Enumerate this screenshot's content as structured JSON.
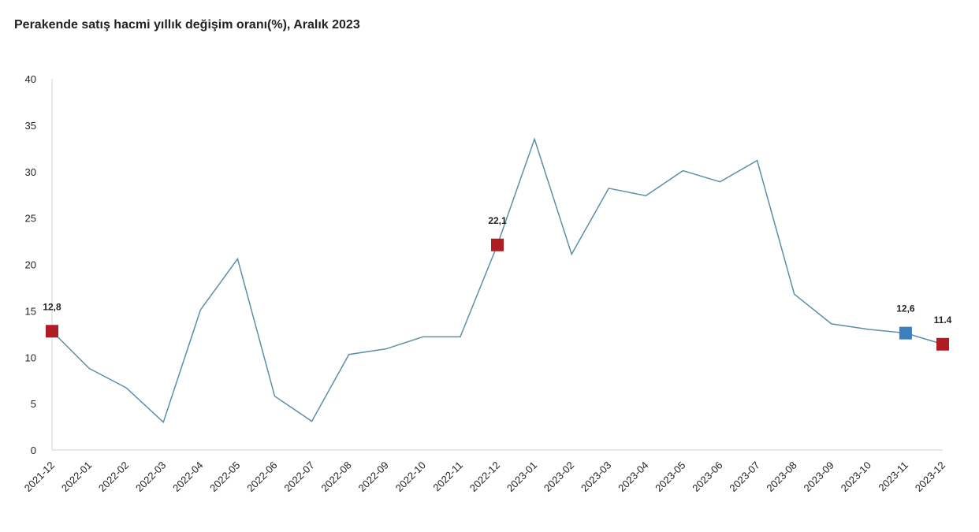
{
  "chart_data": {
    "type": "line",
    "title": "Perakende satış hacmi yıllık değişim oranı(%), Aralık 2023",
    "categories": [
      "2021-12",
      "2022-01",
      "2022-02",
      "2022-03",
      "2022-04",
      "2022-05",
      "2022-06",
      "2022-07",
      "2022-08",
      "2022-09",
      "2022-10",
      "2022-11",
      "2022-12",
      "2023-01",
      "2023-02",
      "2023-03",
      "2023-04",
      "2023-05",
      "2023-06",
      "2023-07",
      "2023-08",
      "2023-09",
      "2023-10",
      "2023-11",
      "2023-12"
    ],
    "series": [
      {
        "color": "#5b8fa8",
        "values": [
          12.8,
          8.8,
          6.7,
          3.0,
          15.1,
          20.6,
          5.8,
          3.1,
          10.3,
          10.9,
          12.2,
          12.2,
          22.1,
          33.5,
          21.1,
          28.2,
          27.4,
          30.1,
          28.9,
          31.2,
          16.8,
          13.6,
          13.0,
          12.6,
          11.4
        ],
        "value_labels": [
          "12,8",
          null,
          null,
          null,
          null,
          null,
          null,
          null,
          null,
          null,
          null,
          null,
          "22,1",
          null,
          null,
          null,
          null,
          null,
          null,
          null,
          null,
          null,
          null,
          "12,6",
          "11.4"
        ],
        "marker_colors": [
          "#b01c24",
          null,
          null,
          null,
          null,
          null,
          null,
          null,
          null,
          null,
          null,
          null,
          "#b01c24",
          null,
          null,
          null,
          null,
          null,
          null,
          null,
          null,
          null,
          null,
          "#3b7fc0",
          "#b01c24"
        ]
      }
    ],
    "ylim": [
      0,
      40
    ],
    "yticks": [
      0,
      5,
      10,
      15,
      20,
      25,
      30,
      35,
      40
    ],
    "grid": false
  }
}
